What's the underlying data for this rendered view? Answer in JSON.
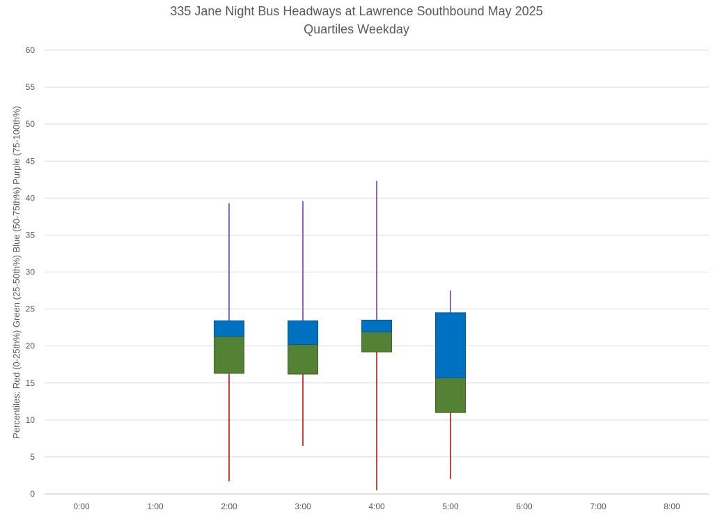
{
  "chart_data": {
    "type": "box",
    "title": "335 Jane Night Bus Headways at Lawrence Southbound May 2025",
    "subtitle": "Quartiles Weekday",
    "ylabel": "Percentiles:  Red (0-25th%)  Green (25-50th%)  Blue (50-75th%)  Purple (75-100th%)",
    "xlabel": "",
    "ylim": [
      0,
      60
    ],
    "yticks": [
      0,
      5,
      10,
      15,
      20,
      25,
      30,
      35,
      40,
      45,
      50,
      55,
      60
    ],
    "categories": [
      "0:00",
      "1:00",
      "2:00",
      "3:00",
      "4:00",
      "5:00",
      "6:00",
      "7:00",
      "8:00"
    ],
    "grid": true,
    "colors": {
      "min_whisker": "#C00000",
      "q1_to_median": "#548235",
      "median_to_q3": "#0070C0",
      "max_whisker": "#7030A0",
      "gridline": "#D9D9D9",
      "text": "#595959"
    },
    "boxes": [
      {
        "category": "2:00",
        "min": 1.7,
        "q1": 16.3,
        "median": 21.3,
        "q3": 23.4,
        "max": 39.3
      },
      {
        "category": "3:00",
        "min": 6.5,
        "q1": 16.2,
        "median": 20.2,
        "q3": 23.4,
        "max": 39.6
      },
      {
        "category": "4:00",
        "min": 0.5,
        "q1": 19.2,
        "median": 21.9,
        "q3": 23.5,
        "max": 42.3
      },
      {
        "category": "5:00",
        "min": 2.0,
        "q1": 11.0,
        "median": 15.7,
        "q3": 24.5,
        "max": 27.5
      }
    ]
  }
}
